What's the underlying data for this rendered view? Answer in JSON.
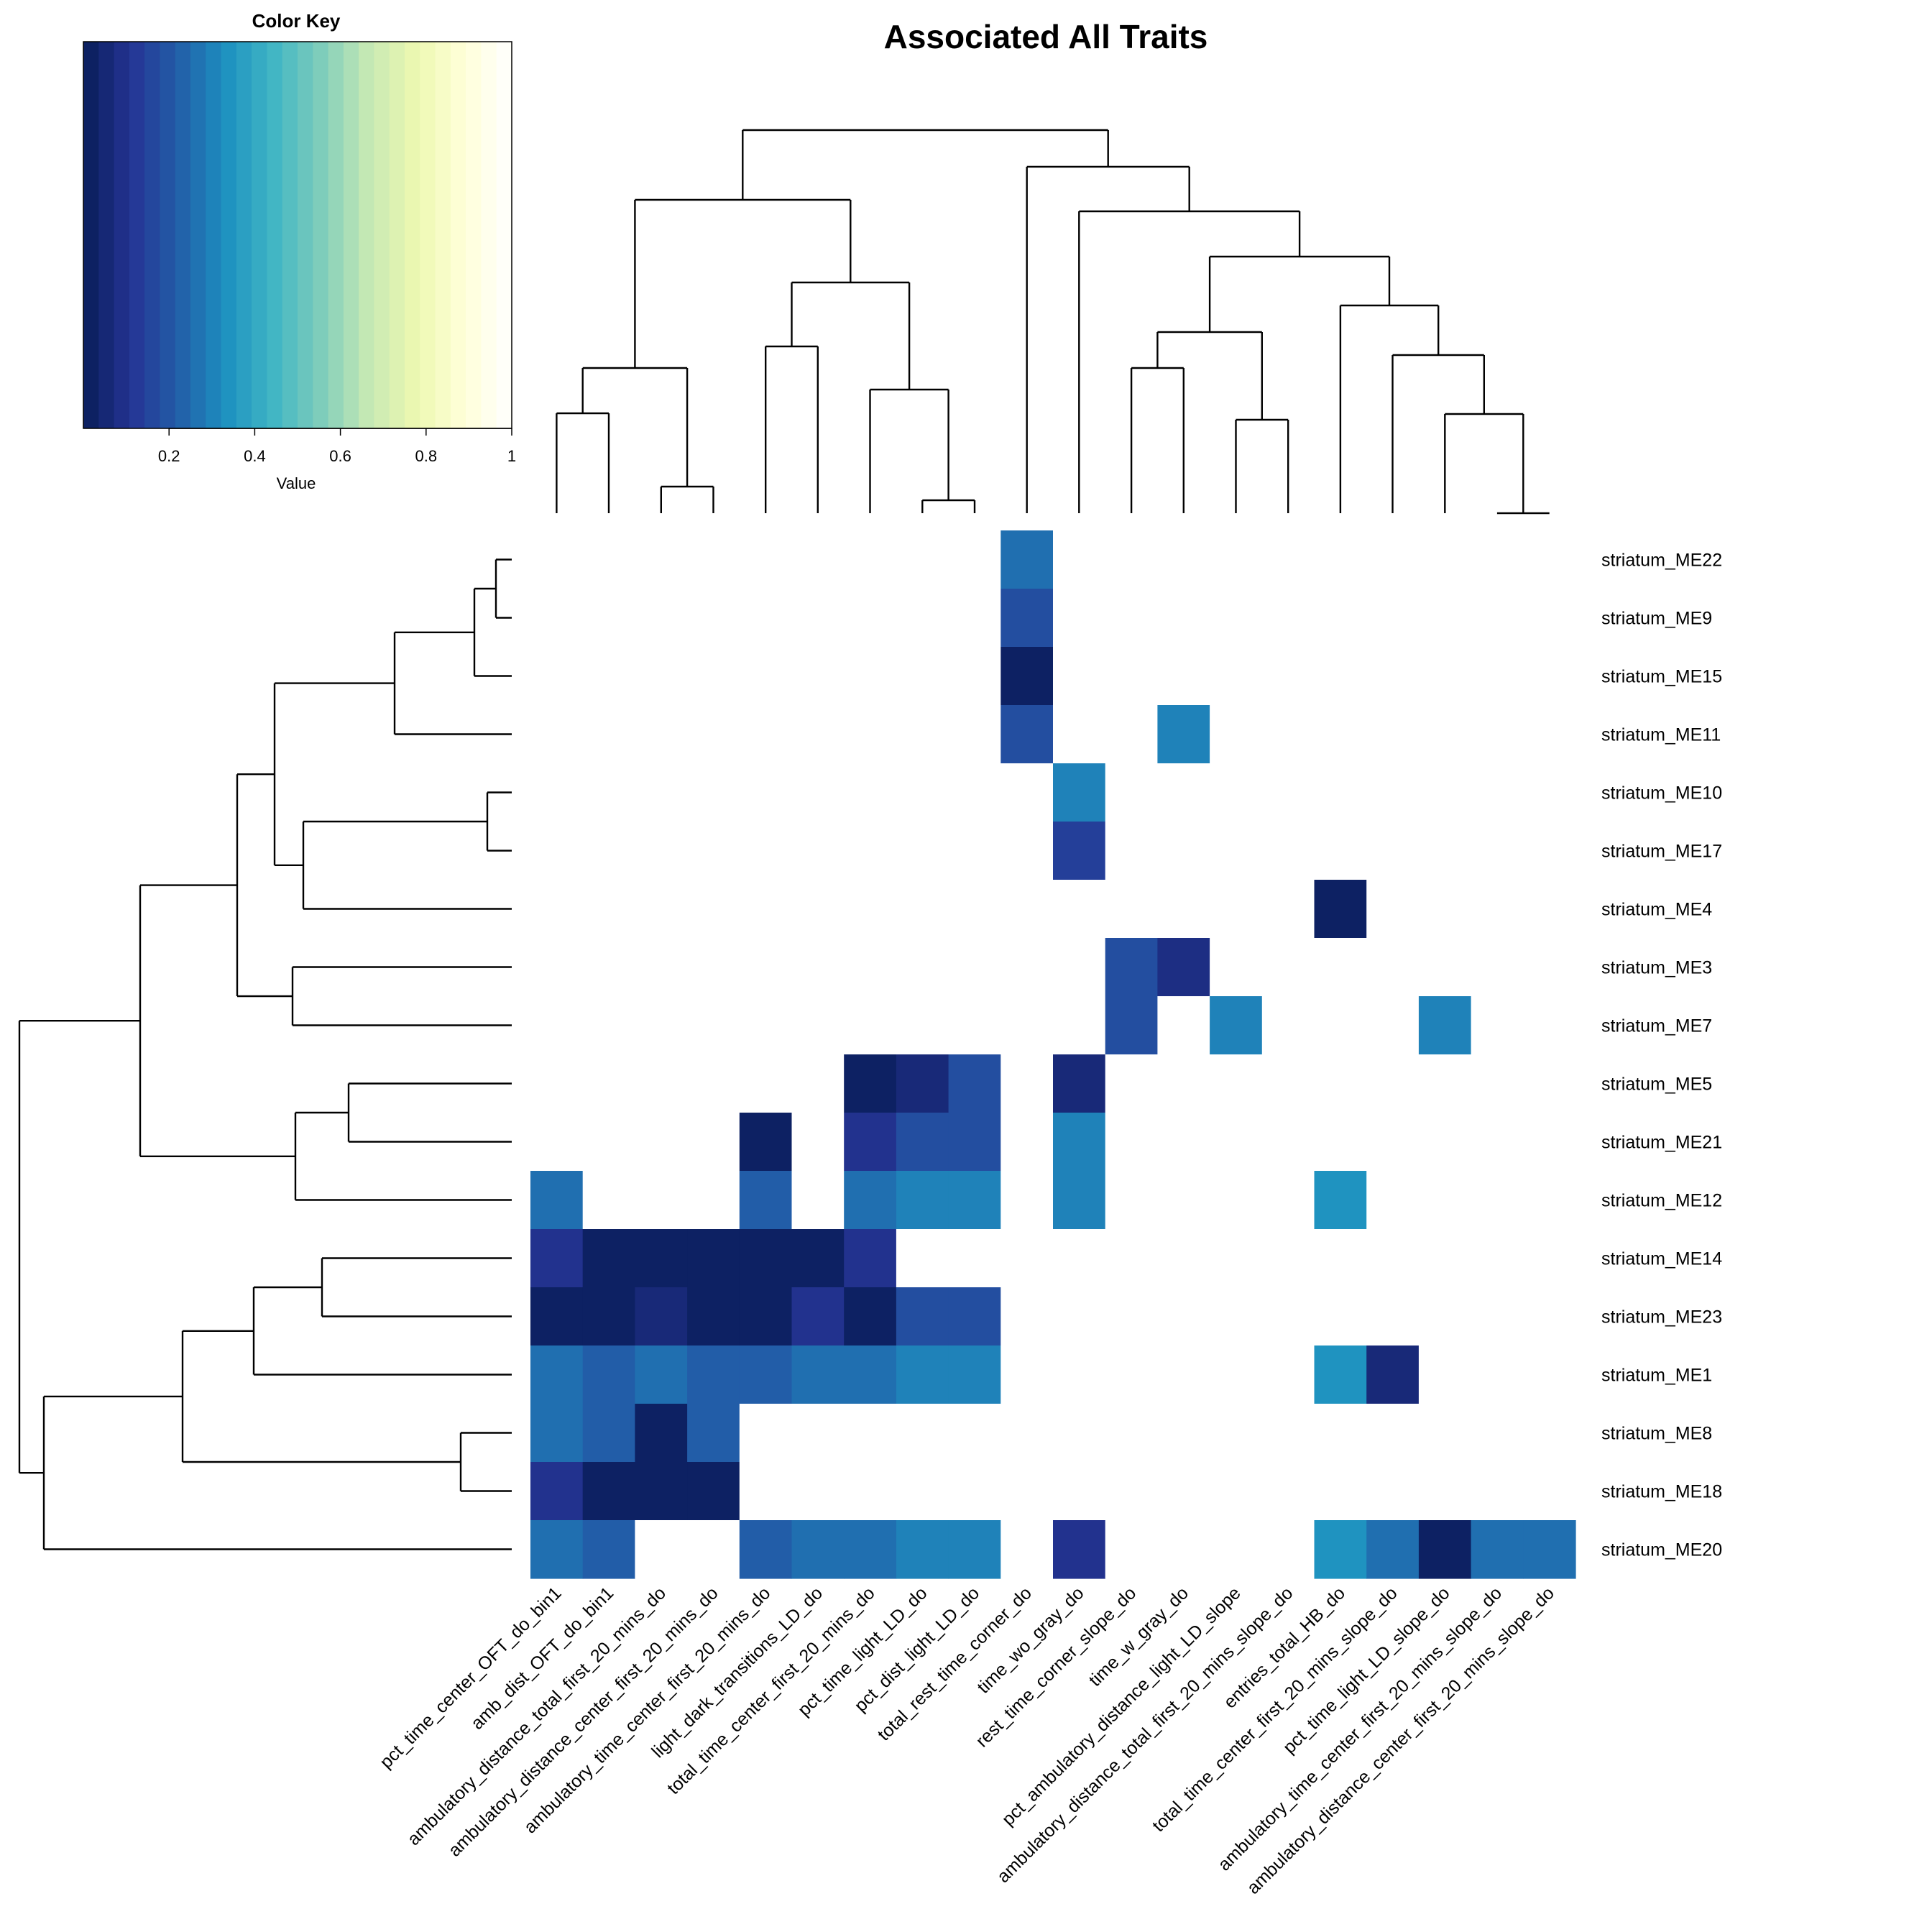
{
  "chart_data": {
    "type": "heatmap",
    "title": "Associated All Traits",
    "colorscale": [
      "#081d58",
      "#253494",
      "#225ea8",
      "#1d91c0",
      "#41b6c4",
      "#7fcdbb",
      "#c7e9b4",
      "#edf8b1",
      "#ffffd9",
      "#ffffff"
    ],
    "color_key": {
      "title": "Color Key",
      "xlabel": "Value",
      "ticks": [
        "0.2",
        "0.4",
        "0.6",
        "0.8",
        "1"
      ],
      "range": [
        0,
        1
      ]
    },
    "rows": [
      "striatum_ME22",
      "striatum_ME9",
      "striatum_ME15",
      "striatum_ME11",
      "striatum_ME10",
      "striatum_ME17",
      "striatum_ME4",
      "striatum_ME3",
      "striatum_ME7",
      "striatum_ME5",
      "striatum_ME21",
      "striatum_ME12",
      "striatum_ME14",
      "striatum_ME23",
      "striatum_ME1",
      "striatum_ME8",
      "striatum_ME18",
      "striatum_ME20"
    ],
    "columns": [
      "pct_time_center_OFT_do_bin1",
      "amb_dist_OFT_do_bin1",
      "ambulatory_distance_total_first_20_mins_do",
      "ambulatory_distance_center_first_20_mins_do",
      "ambulatory_time_center_first_20_mins_do",
      "light_dark_transitions_LD_do",
      "total_time_center_first_20_mins_do",
      "pct_time_light_LD_do",
      "pct_dist_light_LD_do",
      "total_rest_time_corner_do",
      "time_wo_gray_do",
      "rest_time_corner_slope_do",
      "time_w_gray_do",
      "pct_ambulatory_distance_light_LD_slope",
      "ambulatory_distance_total_first_20_mins_slope_do",
      "entries_total_HB_do",
      "total_time_center_first_20_mins_slope_do",
      "pct_time_light_LD_slope_do",
      "ambulatory_time_center_first_20_mins_slope_do",
      "ambulatory_distance_center_first_20_mins_slope_do"
    ],
    "values": [
      [
        1,
        1,
        1,
        1,
        1,
        1,
        1,
        1,
        1,
        0.26,
        1,
        1,
        1,
        1,
        1,
        1,
        1,
        1,
        1,
        1
      ],
      [
        1,
        1,
        1,
        1,
        1,
        1,
        1,
        1,
        1,
        0.18,
        1,
        1,
        1,
        1,
        1,
        1,
        1,
        1,
        1,
        1
      ],
      [
        1,
        1,
        1,
        1,
        1,
        1,
        1,
        1,
        1,
        0.02,
        1,
        1,
        1,
        1,
        1,
        1,
        1,
        1,
        1,
        1
      ],
      [
        1,
        1,
        1,
        1,
        1,
        1,
        1,
        1,
        1,
        0.18,
        1,
        1,
        0.3,
        1,
        1,
        1,
        1,
        1,
        1,
        1
      ],
      [
        1,
        1,
        1,
        1,
        1,
        1,
        1,
        1,
        1,
        1,
        0.3,
        1,
        1,
        1,
        1,
        1,
        1,
        1,
        1,
        1
      ],
      [
        1,
        1,
        1,
        1,
        1,
        1,
        1,
        1,
        1,
        1,
        0.14,
        1,
        1,
        1,
        1,
        1,
        1,
        1,
        1,
        1
      ],
      [
        1,
        1,
        1,
        1,
        1,
        1,
        1,
        1,
        1,
        1,
        1,
        1,
        1,
        1,
        1,
        0.02,
        1,
        1,
        1,
        1
      ],
      [
        1,
        1,
        1,
        1,
        1,
        1,
        1,
        1,
        1,
        1,
        1,
        0.18,
        0.08,
        1,
        1,
        1,
        1,
        1,
        1,
        1
      ],
      [
        1,
        1,
        1,
        1,
        1,
        1,
        1,
        1,
        1,
        1,
        1,
        0.18,
        1,
        0.3,
        1,
        1,
        1,
        0.3,
        1,
        1
      ],
      [
        1,
        1,
        1,
        1,
        1,
        1,
        0.02,
        0.06,
        0.18,
        1,
        0.06,
        1,
        1,
        1,
        1,
        1,
        1,
        1,
        1,
        1
      ],
      [
        1,
        1,
        1,
        1,
        0.02,
        1,
        0.1,
        0.18,
        0.18,
        1,
        0.3,
        1,
        1,
        1,
        1,
        1,
        1,
        1,
        1,
        1
      ],
      [
        0.26,
        1,
        1,
        1,
        0.22,
        1,
        0.26,
        0.3,
        0.3,
        1,
        0.3,
        1,
        1,
        1,
        1,
        0.34,
        1,
        1,
        1,
        1
      ],
      [
        0.1,
        0.02,
        0.02,
        0.02,
        0.02,
        0.02,
        0.1,
        1,
        1,
        1,
        1,
        1,
        1,
        1,
        1,
        1,
        1,
        1,
        1,
        1
      ],
      [
        0.02,
        0.02,
        0.06,
        0.02,
        0.02,
        0.1,
        0.02,
        0.18,
        0.18,
        1,
        1,
        1,
        1,
        1,
        1,
        1,
        1,
        1,
        1,
        1
      ],
      [
        0.26,
        0.22,
        0.26,
        0.22,
        0.22,
        0.26,
        0.26,
        0.3,
        0.3,
        1,
        1,
        1,
        1,
        1,
        1,
        0.34,
        0.06,
        1,
        1,
        1
      ],
      [
        0.26,
        0.22,
        0.02,
        0.22,
        1,
        1,
        1,
        1,
        1,
        1,
        1,
        1,
        1,
        1,
        1,
        1,
        1,
        1,
        1,
        1
      ],
      [
        0.1,
        0.02,
        0.02,
        0.02,
        1,
        1,
        1,
        1,
        1,
        1,
        1,
        1,
        1,
        1,
        1,
        1,
        1,
        1,
        1,
        1
      ],
      [
        0.26,
        0.22,
        1,
        1,
        0.22,
        0.26,
        0.26,
        0.3,
        0.3,
        1,
        0.1,
        1,
        1,
        1,
        1,
        0.34,
        0.26,
        0.02,
        0.26,
        0.26
      ]
    ]
  }
}
